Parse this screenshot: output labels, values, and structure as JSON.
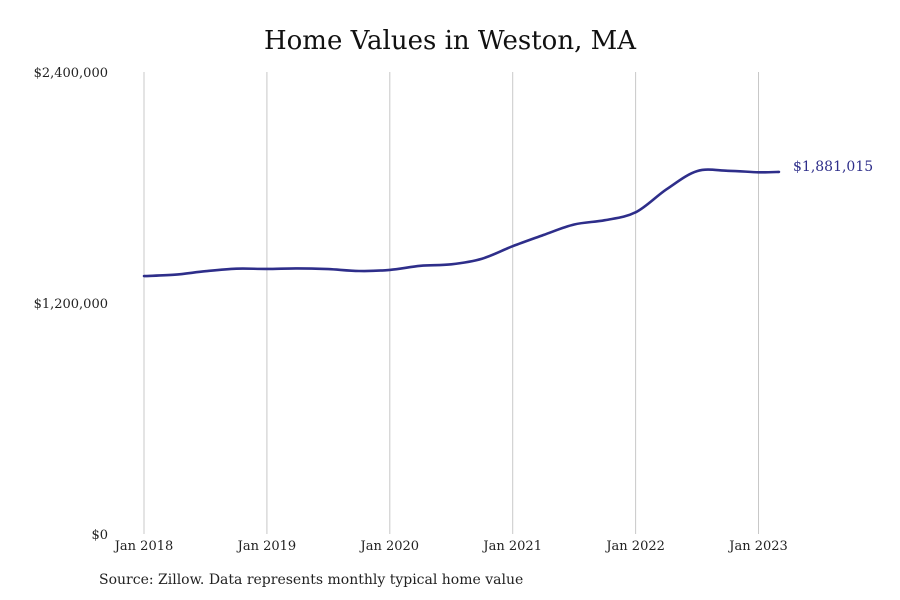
{
  "chart_data": {
    "type": "line",
    "title": "Home Values in Weston, MA",
    "xlabel": "",
    "ylabel": "",
    "ylim": [
      0,
      2400000
    ],
    "yticks": [
      {
        "value": 0,
        "label": "$0"
      },
      {
        "value": 1200000,
        "label": "$1,200,000"
      },
      {
        "value": 2400000,
        "label": "$2,400,000"
      }
    ],
    "xlim": [
      "2018-01",
      "2023-03"
    ],
    "xticks": [
      {
        "date": "2018-01",
        "label": "Jan 2018"
      },
      {
        "date": "2019-01",
        "label": "Jan 2019"
      },
      {
        "date": "2020-01",
        "label": "Jan 2020"
      },
      {
        "date": "2021-01",
        "label": "Jan 2021"
      },
      {
        "date": "2022-01",
        "label": "Jan 2022"
      },
      {
        "date": "2023-01",
        "label": "Jan 2023"
      }
    ],
    "grid": "vertical",
    "series": [
      {
        "color": "#2e2e8a",
        "end_label": "$1,881,015",
        "points": [
          [
            "2018-01",
            1340000
          ],
          [
            "2018-04",
            1347000
          ],
          [
            "2018-07",
            1365000
          ],
          [
            "2018-10",
            1378000
          ],
          [
            "2019-01",
            1377000
          ],
          [
            "2019-04",
            1380000
          ],
          [
            "2019-07",
            1376000
          ],
          [
            "2019-10",
            1366000
          ],
          [
            "2020-01",
            1372000
          ],
          [
            "2020-04",
            1393000
          ],
          [
            "2020-07",
            1401000
          ],
          [
            "2020-10",
            1430000
          ],
          [
            "2021-01",
            1495000
          ],
          [
            "2021-04",
            1553000
          ],
          [
            "2021-07",
            1608000
          ],
          [
            "2021-10",
            1630000
          ],
          [
            "2022-01",
            1671000
          ],
          [
            "2022-04",
            1790000
          ],
          [
            "2022-07",
            1885000
          ],
          [
            "2022-10",
            1887000
          ],
          [
            "2023-01",
            1879000
          ],
          [
            "2023-03",
            1881015
          ]
        ]
      }
    ]
  },
  "footer": {
    "source": "Source: Zillow. Data represents monthly typical home value"
  }
}
